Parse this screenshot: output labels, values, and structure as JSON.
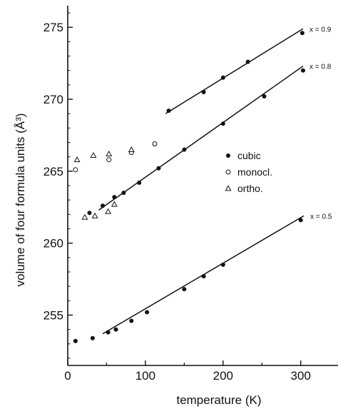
{
  "chart_data": {
    "type": "scatter",
    "xlabel": "temperature (K)",
    "ylabel": "volume of four formula units (Å³)",
    "xlim": [
      0,
      348
    ],
    "ylim": [
      251.5,
      276.5
    ],
    "x_ticks": [
      0,
      100,
      200,
      300
    ],
    "y_ticks": [
      255,
      260,
      265,
      270,
      275
    ],
    "grid": false,
    "legend": {
      "position": "right-middle",
      "entries": [
        {
          "label": "cubic",
          "marker": "filled-circle"
        },
        {
          "label": "monocl.",
          "marker": "open-circle"
        },
        {
          "label": "ortho.",
          "marker": "open-triangle"
        }
      ]
    },
    "series": [
      {
        "name": "cubic",
        "marker": "filled-circle",
        "points": [
          [
            130,
            269.2
          ],
          [
            175,
            270.5
          ],
          [
            200,
            271.5
          ],
          [
            232,
            272.6
          ],
          [
            302,
            274.6
          ],
          [
            28,
            262.1
          ],
          [
            45,
            262.6
          ],
          [
            60,
            263.2
          ],
          [
            72,
            263.5
          ],
          [
            92,
            264.2
          ],
          [
            117,
            265.2
          ],
          [
            150,
            266.5
          ],
          [
            200,
            268.3
          ],
          [
            253,
            270.2
          ],
          [
            303,
            272.0
          ],
          [
            10,
            253.2
          ],
          [
            32,
            253.4
          ],
          [
            52,
            253.8
          ],
          [
            62,
            254.0
          ],
          [
            82,
            254.6
          ],
          [
            102,
            255.2
          ],
          [
            150,
            256.8
          ],
          [
            175,
            257.7
          ],
          [
            200,
            258.5
          ],
          [
            300,
            261.6
          ]
        ]
      },
      {
        "name": "monocl.",
        "marker": "open-circle",
        "points": [
          [
            10,
            265.1
          ],
          [
            53,
            265.8
          ],
          [
            82,
            266.3
          ],
          [
            112,
            266.9
          ]
        ]
      },
      {
        "name": "ortho.",
        "marker": "open-triangle",
        "points": [
          [
            12,
            265.8
          ],
          [
            22,
            261.8
          ],
          [
            35,
            261.9
          ],
          [
            33,
            266.1
          ],
          [
            52,
            262.2
          ],
          [
            53,
            266.2
          ],
          [
            60,
            262.7
          ],
          [
            82,
            266.5
          ]
        ]
      }
    ],
    "fit_lines": [
      {
        "label": "x = 0.9",
        "x": [
          126,
          303
        ],
        "y": [
          269.0,
          274.9
        ]
      },
      {
        "label": "x = 0.8",
        "x": [
          40,
          303
        ],
        "y": [
          262.3,
          272.3
        ]
      },
      {
        "label": "x = 0.5",
        "x": [
          45,
          304
        ],
        "y": [
          253.7,
          261.9
        ]
      }
    ]
  }
}
